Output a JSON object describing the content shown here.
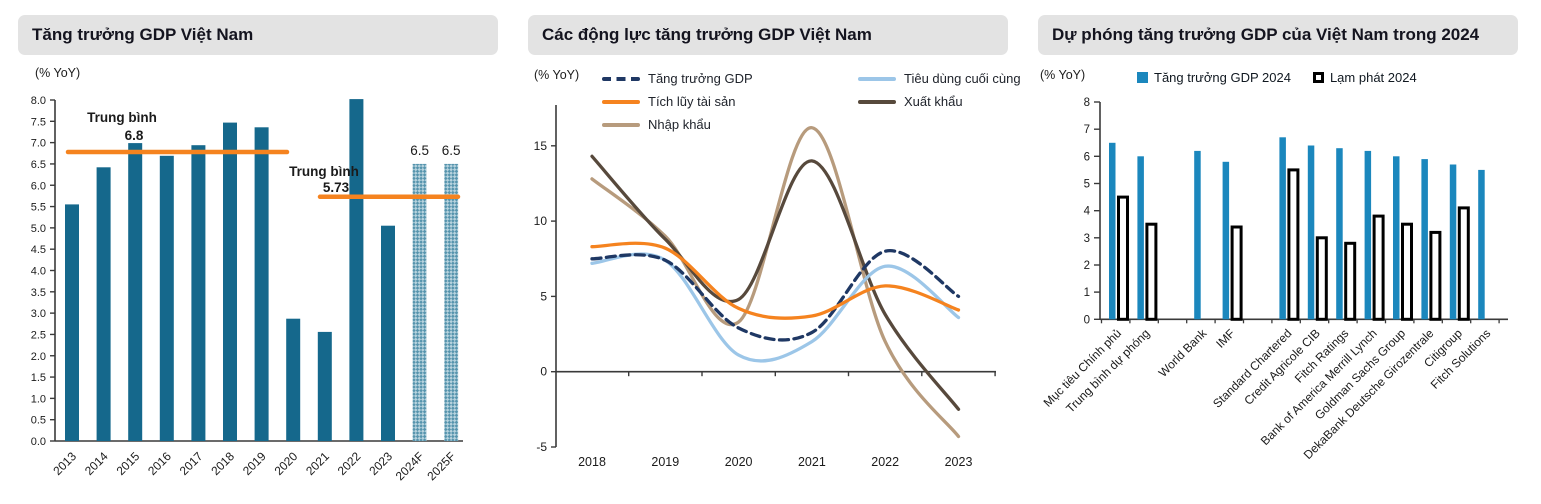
{
  "panels": [
    {
      "title": "Tăng trưởng GDP Việt Nam",
      "unit_label": "(% YoY)"
    },
    {
      "title": "Các động lực tăng trưởng GDP Việt Nam",
      "unit_label": "(% YoY)"
    },
    {
      "title": "Dự phóng tăng trưởng GDP của Việt Nam trong 2024",
      "unit_label": "(% YoY)"
    }
  ],
  "colors": {
    "bar_teal": "#15688c",
    "forecast_hatch_light": "#b7d3de",
    "forecast_hatch_dark": "#5694ad",
    "average_line_orange": "#f5831f",
    "gdp_navy": "#1f3864",
    "consumption_light_blue": "#9cc6e8",
    "asset_orange": "#f5831f",
    "export_brown": "#57493c",
    "import_tan": "#b79b7d",
    "forecast_blue": "#1b87bd",
    "inflation_black": "#000000",
    "title_bg_grey": "#e3e3e3",
    "axis_grey": "#3a3a3a"
  },
  "chart_data": [
    {
      "type": "bar",
      "title": "Tăng trưởng GDP Việt Nam",
      "ylabel": "(% YoY)",
      "ylim": [
        0,
        8
      ],
      "ytick_step": 0.5,
      "grid": false,
      "categories": [
        "2013",
        "2014",
        "2015",
        "2016",
        "2017",
        "2018",
        "2019",
        "2020",
        "2021",
        "2022",
        "2023",
        "2024F",
        "2025F"
      ],
      "values": [
        5.55,
        6.42,
        6.99,
        6.69,
        6.94,
        7.47,
        7.36,
        2.87,
        2.56,
        8.02,
        5.05,
        6.5,
        6.5
      ],
      "forecast": [
        false,
        false,
        false,
        false,
        false,
        false,
        false,
        false,
        false,
        false,
        false,
        true,
        true
      ],
      "value_labels": [
        null,
        null,
        null,
        null,
        null,
        null,
        null,
        null,
        null,
        null,
        null,
        "6.5",
        "6.5"
      ],
      "annotations": [
        {
          "label": "Trung bình",
          "value_label": "6.8",
          "value": 6.78,
          "from": "2013",
          "to": "2019"
        },
        {
          "label": "Trung bình",
          "value_label": "5.73",
          "value": 5.73,
          "from": "2021",
          "to": "2025F"
        }
      ]
    },
    {
      "type": "line",
      "title": "Các động lực tăng trưởng GDP Việt Nam",
      "ylabel": "(% YoY)",
      "ylim": [
        -5,
        17
      ],
      "yticks": [
        -5,
        0,
        5,
        10,
        15
      ],
      "grid": false,
      "legend_position": "top",
      "x": [
        "2018",
        "2019",
        "2020",
        "2021",
        "2022",
        "2023"
      ],
      "series": [
        {
          "name": "Tăng trưởng GDP",
          "color": "#1f3864",
          "dash": true,
          "values": [
            7.5,
            7.4,
            2.9,
            2.6,
            8.0,
            5.0
          ]
        },
        {
          "name": "Tiêu dùng cuối cùng",
          "color": "#9cc6e8",
          "dash": false,
          "values": [
            7.2,
            7.4,
            1.1,
            2.0,
            7.0,
            3.6
          ]
        },
        {
          "name": "Tích lũy tài sản",
          "color": "#f5831f",
          "dash": false,
          "values": [
            8.3,
            8.2,
            4.2,
            3.7,
            5.7,
            4.1
          ]
        },
        {
          "name": "Xuất khẩu",
          "color": "#57493c",
          "dash": false,
          "values": [
            14.3,
            8.8,
            4.8,
            14.0,
            3.8,
            -2.5
          ]
        },
        {
          "name": "Nhập khẩu",
          "color": "#b79b7d",
          "dash": false,
          "values": [
            12.8,
            9.0,
            3.3,
            16.2,
            2.0,
            -4.3
          ]
        }
      ]
    },
    {
      "type": "bar",
      "title": "Dự phóng tăng trưởng GDP của Việt Nam trong 2024",
      "ylabel": "(% YoY)",
      "ylim": [
        0,
        8
      ],
      "ytick_step": 1,
      "grid": false,
      "legend_position": "top",
      "categories": [
        "Mục tiêu Chính phủ",
        "Trung bình dự phóng",
        "World Bank",
        "IMF",
        "Standard Chartered",
        "Credit Agricole CIB",
        "Fitch Ratings",
        "Bank of America Merrill Lynch",
        "Goldman Sachs Group",
        "DekaBank Deutsche Girozentrale",
        "Citigroup",
        "Fitch Solutions"
      ],
      "group_gaps_after": [
        "Trung bình dự phóng",
        "IMF"
      ],
      "series": [
        {
          "name": "Tăng trưởng GDP 2024",
          "color": "#1b87bd",
          "values": [
            6.5,
            6.0,
            6.2,
            5.8,
            6.7,
            6.4,
            6.3,
            6.2,
            6.0,
            5.9,
            5.7,
            5.5
          ]
        },
        {
          "name": "Lạm phát 2024",
          "color": "#000000",
          "fill": "#ffffff",
          "values": [
            4.5,
            3.5,
            null,
            3.4,
            5.5,
            3.0,
            2.8,
            3.8,
            3.5,
            3.2,
            4.1,
            null
          ]
        }
      ]
    }
  ]
}
